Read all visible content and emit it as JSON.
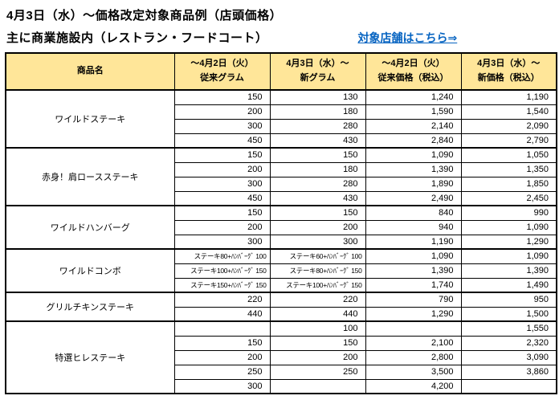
{
  "page": {
    "title": "4月3日（水）〜価格改定対象商品例（店頭価格）",
    "subtitle": "主に商業施設内（レストラン・フードコート）",
    "link_label": "対象店舗はこちら⇒",
    "link_color": "#0563C1"
  },
  "table": {
    "header_bg": "#FFE699",
    "columns": [
      {
        "line1": "商品名",
        "line2": ""
      },
      {
        "line1": "〜4月2日（火）",
        "line2": "従来グラム"
      },
      {
        "line1": "4月3日（水）〜",
        "line2": "新グラム"
      },
      {
        "line1": "〜4月2日（火）",
        "line2": "従来価格（税込）"
      },
      {
        "line1": "4月3日（水）〜",
        "line2": "新価格（税込）"
      }
    ],
    "groups": [
      {
        "name": "ワイルドステーキ",
        "rows": [
          [
            "150",
            "130",
            "1,240",
            "1,190"
          ],
          [
            "200",
            "180",
            "1,590",
            "1,540"
          ],
          [
            "300",
            "280",
            "2,140",
            "2,090"
          ],
          [
            "450",
            "430",
            "2,840",
            "2,790"
          ]
        ]
      },
      {
        "name": "赤身！肩ロースステーキ",
        "rows": [
          [
            "150",
            "150",
            "1,090",
            "1,050"
          ],
          [
            "200",
            "180",
            "1,390",
            "1,350"
          ],
          [
            "300",
            "280",
            "1,890",
            "1,850"
          ],
          [
            "450",
            "430",
            "2,490",
            "2,450"
          ]
        ]
      },
      {
        "name": "ワイルドハンバーグ",
        "rows": [
          [
            "150",
            "150",
            "840",
            "990"
          ],
          [
            "200",
            "200",
            "940",
            "1,090"
          ],
          [
            "300",
            "300",
            "1,190",
            "1,290"
          ]
        ]
      },
      {
        "name": "ワイルドコンボ",
        "rows": [
          [
            "ステーキ80+ﾊﾝﾊﾞｰｸﾞ 100",
            "ステーキ60+ﾊﾝﾊﾞｰｸﾞ 100",
            "1,090",
            "1,090"
          ],
          [
            "ステーキ100+ﾊﾝﾊﾞｰｸﾞ 150",
            "ステーキ80+ﾊﾝﾊﾞｰｸﾞ 150",
            "1,390",
            "1,390"
          ],
          [
            "ステーキ150+ﾊﾝﾊﾞｰｸﾞ 150",
            "ステーキ100+ﾊﾝﾊﾞｰｸﾞ 150",
            "1,740",
            "1,490"
          ]
        ]
      },
      {
        "name": "グリルチキンステーキ",
        "rows": [
          [
            "220",
            "220",
            "790",
            "950"
          ],
          [
            "440",
            "440",
            "1,290",
            "1,500"
          ]
        ]
      },
      {
        "name": "特選ヒレステーキ",
        "rows": [
          [
            "",
            "100",
            "",
            "1,550"
          ],
          [
            "150",
            "150",
            "2,100",
            "2,320"
          ],
          [
            "200",
            "200",
            "2,800",
            "3,090"
          ],
          [
            "250",
            "250",
            "3,500",
            "3,860"
          ],
          [
            "300",
            "",
            "4,200",
            ""
          ]
        ]
      }
    ]
  }
}
